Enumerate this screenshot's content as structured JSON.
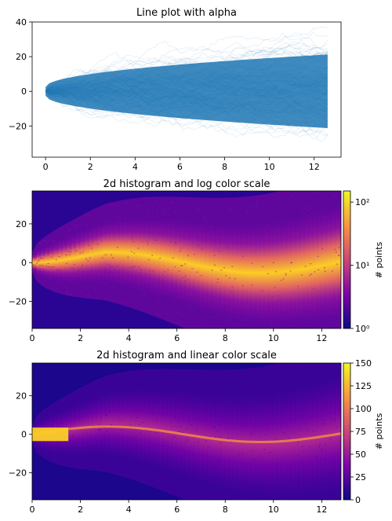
{
  "chart_data": [
    {
      "type": "line",
      "title": "Line plot with alpha",
      "xlim": [
        -0.6,
        13.2
      ],
      "ylim": [
        -38,
        40
      ],
      "x_ticks": [
        0,
        2,
        4,
        6,
        8,
        10,
        12
      ],
      "y_ticks": [
        -20,
        0,
        20,
        40
      ],
      "x_tick_labels": [
        "0",
        "2",
        "4",
        "6",
        "8",
        "10",
        "12"
      ],
      "y_tick_labels": [
        "−20",
        "0",
        "20",
        "40"
      ],
      "series_color": "#1f77b4",
      "x_range": [
        0,
        12.6
      ],
      "y_spread_at_end": [
        -35,
        37
      ],
      "description_values": {
        "center": 0
      }
    },
    {
      "type": "heatmap",
      "title": "2d histogram and log color scale",
      "xlim": [
        0,
        12.8
      ],
      "ylim": [
        -34,
        37
      ],
      "x_ticks": [
        0,
        2,
        4,
        6,
        8,
        10,
        12
      ],
      "y_ticks": [
        -20,
        0,
        20
      ],
      "x_tick_labels": [
        "0",
        "2",
        "4",
        "6",
        "8",
        "10",
        "12"
      ],
      "y_tick_labels": [
        "−20",
        "0",
        "20"
      ],
      "colormap": "plasma",
      "color_scale": "log",
      "colorbar_range": [
        1,
        150
      ],
      "colorbar_ticks": [
        1,
        10,
        100
      ],
      "colorbar_tick_labels": [
        "10⁰",
        "10¹",
        "10²"
      ],
      "colorbar_label": "# points"
    },
    {
      "type": "heatmap",
      "title": "2d histogram and linear color scale",
      "xlim": [
        0,
        12.8
      ],
      "ylim": [
        -34,
        37
      ],
      "x_ticks": [
        0,
        2,
        4,
        6,
        8,
        10,
        12
      ],
      "y_ticks": [
        -20,
        0,
        20
      ],
      "x_tick_labels": [
        "0",
        "2",
        "4",
        "6",
        "8",
        "10",
        "12"
      ],
      "y_tick_labels": [
        "−20",
        "0",
        "20"
      ],
      "colormap": "plasma",
      "color_scale": "linear",
      "colorbar_range": [
        0,
        150
      ],
      "colorbar_ticks": [
        0,
        25,
        50,
        75,
        100,
        125,
        150
      ],
      "colorbar_tick_labels": [
        "0",
        "25",
        "50",
        "75",
        "100",
        "125",
        "150"
      ],
      "colorbar_label": "# points"
    }
  ]
}
